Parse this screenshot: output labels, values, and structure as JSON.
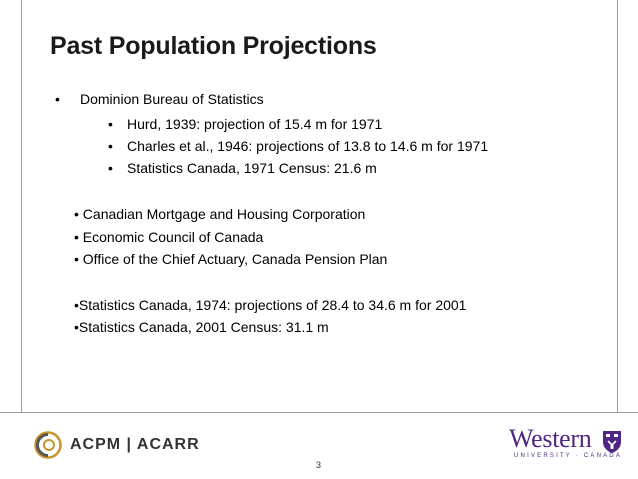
{
  "title": "Past Population Projections",
  "bullets": {
    "level1": {
      "marker": "•",
      "text": "Dominion Bureau of Statistics"
    },
    "sub": [
      {
        "marker": "•",
        "text": "Hurd, 1939: projection of 15.4 m for 1971"
      },
      {
        "marker": "•",
        "text": "Charles et al., 1946: projections of 13.8 to 14.6 m for 1971"
      },
      {
        "marker": "•",
        "text": "Statistics Canada, 1971 Census: 21.6 m"
      }
    ],
    "group2": [
      "• Canadian Mortgage and Housing Corporation",
      "• Economic Council of Canada",
      "• Office of the Chief Actuary, Canada Pension Plan"
    ],
    "group3": [
      "•Statistics Canada, 1974: projections of 28.4 to 34.6 m for 2001",
      "•Statistics Canada, 2001 Census: 31.1 m"
    ]
  },
  "footer": {
    "acpm_label": "ACPM | ACARR",
    "page_number": "3",
    "western_name": "Western",
    "western_subtitle": "UNIVERSITY · CANADA"
  },
  "colors": {
    "western_purple": "#4f2683",
    "acpm_gold": "#c8952b",
    "frame_gray": "#9a9a9a"
  }
}
